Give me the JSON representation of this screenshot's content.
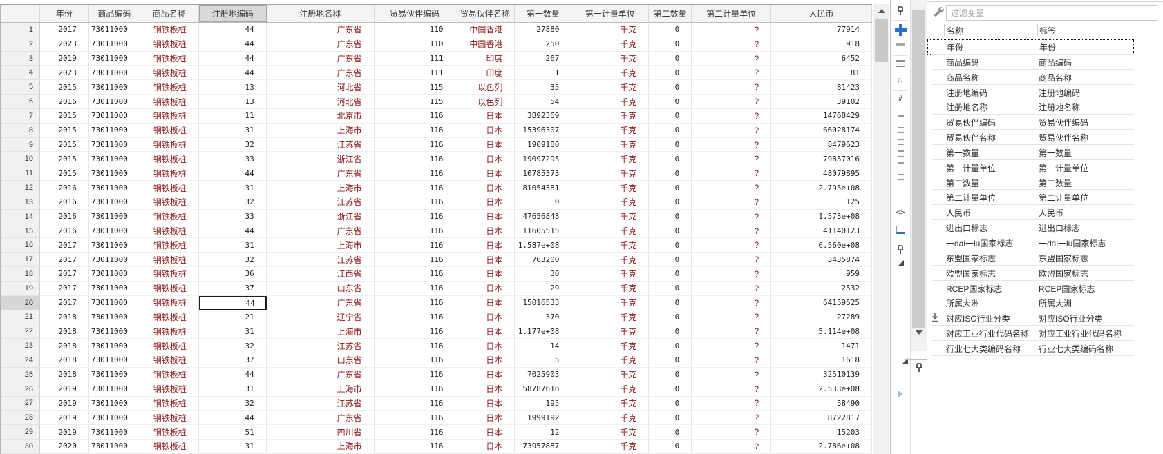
{
  "grid": {
    "columns": [
      {
        "label": "年份",
        "type": "num"
      },
      {
        "label": "商品编码",
        "type": "num"
      },
      {
        "label": "商品名称",
        "type": "str"
      },
      {
        "label": "注册地编码",
        "type": "num"
      },
      {
        "label": "注册地名称",
        "type": "str"
      },
      {
        "label": "贸易伙伴编码",
        "type": "num"
      },
      {
        "label": "贸易伙伴名称",
        "type": "str"
      },
      {
        "label": "第一数量",
        "type": "num"
      },
      {
        "label": "第一计量单位",
        "type": "str"
      },
      {
        "label": "第二数量",
        "type": "num"
      },
      {
        "label": "第二计量单位",
        "type": "str"
      },
      {
        "label": "人民币",
        "type": "num"
      }
    ],
    "rows": [
      [
        "1",
        "2017",
        "73011000",
        "钢铁板桩",
        "44",
        "广东省",
        "110",
        "中国香港",
        "27880",
        "千克",
        "0",
        "?",
        "77914"
      ],
      [
        "2",
        "2023",
        "73011000",
        "钢铁板桩",
        "44",
        "广东省",
        "110",
        "中国香港",
        "250",
        "千克",
        "0",
        "?",
        "918"
      ],
      [
        "3",
        "2019",
        "73011000",
        "钢铁板桩",
        "44",
        "广东省",
        "111",
        "印度",
        "267",
        "千克",
        "0",
        "?",
        "6452"
      ],
      [
        "4",
        "2023",
        "73011000",
        "钢铁板桩",
        "44",
        "广东省",
        "111",
        "印度",
        "1",
        "千克",
        "0",
        "?",
        "81"
      ],
      [
        "5",
        "2015",
        "73011000",
        "钢铁板桩",
        "13",
        "河北省",
        "115",
        "以色列",
        "35",
        "千克",
        "0",
        "?",
        "81423"
      ],
      [
        "6",
        "2016",
        "73011000",
        "钢铁板桩",
        "13",
        "河北省",
        "115",
        "以色列",
        "54",
        "千克",
        "0",
        "?",
        "39102"
      ],
      [
        "7",
        "2015",
        "73011000",
        "钢铁板桩",
        "11",
        "北京市",
        "116",
        "日本",
        "3892369",
        "千克",
        "0",
        "?",
        "14768429"
      ],
      [
        "8",
        "2015",
        "73011000",
        "钢铁板桩",
        "31",
        "上海市",
        "116",
        "日本",
        "15396307",
        "千克",
        "0",
        "?",
        "66028174"
      ],
      [
        "9",
        "2015",
        "73011000",
        "钢铁板桩",
        "32",
        "江苏省",
        "116",
        "日本",
        "1909180",
        "千克",
        "0",
        "?",
        "8479623"
      ],
      [
        "10",
        "2015",
        "73011000",
        "钢铁板桩",
        "33",
        "浙江省",
        "116",
        "日本",
        "19097295",
        "千克",
        "0",
        "?",
        "79857016"
      ],
      [
        "11",
        "2015",
        "73011000",
        "钢铁板桩",
        "44",
        "广东省",
        "116",
        "日本",
        "10785373",
        "千克",
        "0",
        "?",
        "48079895"
      ],
      [
        "12",
        "2016",
        "73011000",
        "钢铁板桩",
        "31",
        "上海市",
        "116",
        "日本",
        "81054381",
        "千克",
        "0",
        "?",
        "2.795e+08"
      ],
      [
        "13",
        "2016",
        "73011000",
        "钢铁板桩",
        "32",
        "江苏省",
        "116",
        "日本",
        "0",
        "千克",
        "0",
        "?",
        "125"
      ],
      [
        "14",
        "2016",
        "73011000",
        "钢铁板桩",
        "33",
        "浙江省",
        "116",
        "日本",
        "47656848",
        "千克",
        "0",
        "?",
        "1.573e+08"
      ],
      [
        "15",
        "2016",
        "73011000",
        "钢铁板桩",
        "44",
        "广东省",
        "116",
        "日本",
        "11605515",
        "千克",
        "0",
        "?",
        "41140123"
      ],
      [
        "16",
        "2017",
        "73011000",
        "钢铁板桩",
        "31",
        "上海市",
        "116",
        "日本",
        "1.587e+08",
        "千克",
        "0",
        "?",
        "6.560e+08"
      ],
      [
        "17",
        "2017",
        "73011000",
        "钢铁板桩",
        "32",
        "江苏省",
        "116",
        "日本",
        "763200",
        "千克",
        "0",
        "?",
        "3435874"
      ],
      [
        "18",
        "2017",
        "73011000",
        "钢铁板桩",
        "36",
        "江西省",
        "116",
        "日本",
        "30",
        "千克",
        "0",
        "?",
        "959"
      ],
      [
        "19",
        "2017",
        "73011000",
        "钢铁板桩",
        "37",
        "山东省",
        "116",
        "日本",
        "29",
        "千克",
        "0",
        "?",
        "2532"
      ],
      [
        "20",
        "2017",
        "73011000",
        "钢铁板桩",
        "44",
        "广东省",
        "116",
        "日本",
        "15016533",
        "千克",
        "0",
        "?",
        "64159525"
      ],
      [
        "21",
        "2018",
        "73011000",
        "钢铁板桩",
        "21",
        "辽宁省",
        "116",
        "日本",
        "370",
        "千克",
        "0",
        "?",
        "27289"
      ],
      [
        "22",
        "2018",
        "73011000",
        "钢铁板桩",
        "31",
        "上海市",
        "116",
        "日本",
        "1.177e+08",
        "千克",
        "0",
        "?",
        "5.114e+08"
      ],
      [
        "23",
        "2018",
        "73011000",
        "钢铁板桩",
        "32",
        "江苏省",
        "116",
        "日本",
        "14",
        "千克",
        "0",
        "?",
        "1471"
      ],
      [
        "24",
        "2018",
        "73011000",
        "钢铁板桩",
        "37",
        "山东省",
        "116",
        "日本",
        "5",
        "千克",
        "0",
        "?",
        "1618"
      ],
      [
        "25",
        "2018",
        "73011000",
        "钢铁板桩",
        "44",
        "广东省",
        "116",
        "日本",
        "7025903",
        "千克",
        "0",
        "?",
        "32510139"
      ],
      [
        "26",
        "2019",
        "73011000",
        "钢铁板桩",
        "31",
        "上海市",
        "116",
        "日本",
        "58787616",
        "千克",
        "0",
        "?",
        "2.533e+08"
      ],
      [
        "27",
        "2019",
        "73011000",
        "钢铁板桩",
        "32",
        "江苏省",
        "116",
        "日本",
        "195",
        "千克",
        "0",
        "?",
        "58490"
      ],
      [
        "28",
        "2019",
        "73011000",
        "钢铁板桩",
        "44",
        "广东省",
        "116",
        "日本",
        "1999192",
        "千克",
        "0",
        "?",
        "8722817"
      ],
      [
        "29",
        "2019",
        "73011000",
        "钢铁板桩",
        "51",
        "四川省",
        "116",
        "日本",
        "12",
        "千克",
        "0",
        "?",
        "15203"
      ],
      [
        "30",
        "2020",
        "73011000",
        "钢铁板桩",
        "31",
        "上海市",
        "116",
        "日本",
        "73957887",
        "千克",
        "0",
        "?",
        "2.786e+08"
      ]
    ],
    "selection": {
      "row_number": "20",
      "column": "注册地编码",
      "value": "44"
    }
  },
  "side_toolbar": {
    "icons": [
      "pin-icon",
      "add-icon",
      "remove-icon",
      "window-icon",
      "clipped-text-r",
      "hash-icon",
      "collapsed-vertical-text",
      "horizontal-scroll-icon",
      "panel-blue-edge-icon",
      "pin-icon",
      "corner-triangle-icon",
      "corner-triangle-icon",
      "blue-chevron-icon"
    ],
    "clipped_labels": {
      "r_text": "R",
      "hash_text": "#",
      "angle_text": "<>"
    }
  },
  "variables_panel": {
    "filter_placeholder": "过滤变量",
    "header": {
      "name": "名称",
      "label": "标签"
    },
    "items": [
      {
        "name": "年份",
        "label": "年份",
        "focused": true
      },
      {
        "name": "商品编码",
        "label": "商品编码"
      },
      {
        "name": "商品名称",
        "label": "商品名称"
      },
      {
        "name": "注册地编码",
        "label": "注册地编码"
      },
      {
        "name": "注册地名称",
        "label": "注册地名称"
      },
      {
        "name": "贸易伙伴编码",
        "label": "贸易伙伴编码"
      },
      {
        "name": "贸易伙伴名称",
        "label": "贸易伙伴名称"
      },
      {
        "name": "第一数量",
        "label": "第一数量"
      },
      {
        "name": "第一计量单位",
        "label": "第一计量单位"
      },
      {
        "name": "第二数量",
        "label": "第二数量"
      },
      {
        "name": "第二计量单位",
        "label": "第二计量单位"
      },
      {
        "name": "人民币",
        "label": "人民币"
      },
      {
        "name": "进出口标志",
        "label": "进出口标志"
      },
      {
        "name": "一dai一lu国家标志",
        "label": "一dai一lu国家标志"
      },
      {
        "name": "东盟国家标志",
        "label": "东盟国家标志"
      },
      {
        "name": "欧盟国家标志",
        "label": "欧盟国家标志"
      },
      {
        "name": "RCEP国家标志",
        "label": "RCEP国家标志"
      },
      {
        "name": "所属大洲",
        "label": "所属大洲"
      },
      {
        "name": "对应ISO行业分类",
        "label": "对应ISO行业分类",
        "icon": "download-icon"
      },
      {
        "name": "对应工业行业代码名称",
        "label": "对应工业行业代码名称"
      },
      {
        "name": "行业七大类编码名称",
        "label": "行业七大类编码名称"
      }
    ],
    "colors": {
      "string_text": "#8e1a1a",
      "accent_blue": "#2a6fc9",
      "selected_header_bg": "#d9d9d9"
    }
  }
}
